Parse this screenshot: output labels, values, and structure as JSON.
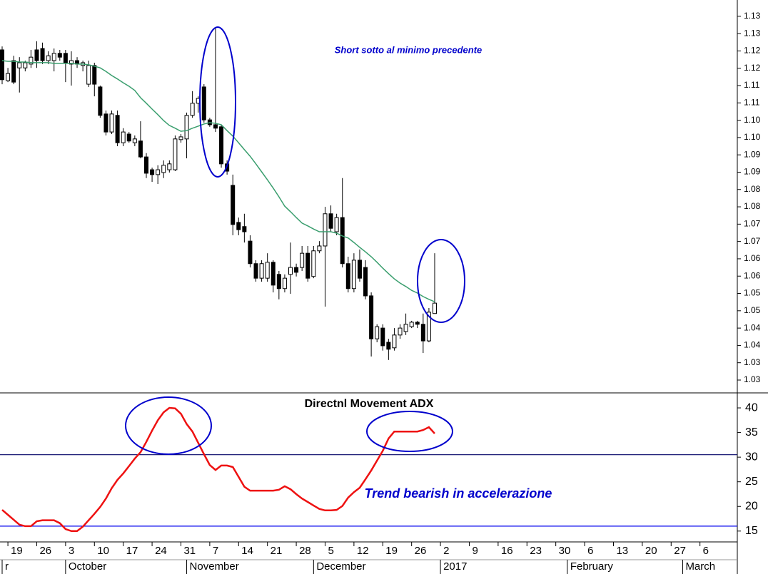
{
  "chart_data": {
    "type": "candlestick",
    "up_color": "#ffffff",
    "down_color": "#000000",
    "categories": [
      null,
      "19",
      null,
      null,
      null,
      null,
      "26",
      null,
      null,
      null,
      null,
      "3",
      null,
      null,
      null,
      null,
      "10",
      null,
      null,
      null,
      null,
      "17",
      null,
      null,
      null,
      null,
      "24",
      null,
      null,
      null,
      null,
      "31",
      null,
      null,
      null,
      null,
      "7",
      null,
      null,
      null,
      null,
      "14",
      null,
      null,
      null,
      null,
      "21",
      null,
      null,
      null,
      null,
      "28",
      null,
      null,
      null,
      null,
      "5",
      null,
      null,
      null,
      null,
      "12",
      null,
      null,
      null,
      null,
      "19",
      null,
      null,
      null,
      null,
      "26",
      null,
      null,
      null,
      null,
      "2",
      null,
      null,
      null,
      null,
      "9",
      null,
      null,
      null,
      null,
      "16",
      null,
      null,
      null,
      null,
      "23",
      null,
      null,
      null,
      null,
      "30",
      null,
      null,
      null,
      null,
      "6",
      null,
      null,
      null,
      null,
      "13",
      null,
      null,
      null,
      null,
      "20",
      null,
      null,
      null,
      null,
      "27",
      null,
      null,
      null,
      null,
      "6",
      null,
      null,
      null,
      null
    ],
    "x_groups": [
      "r",
      null,
      null,
      null,
      null,
      null,
      null,
      null,
      null,
      null,
      null,
      "October",
      null,
      null,
      null,
      null,
      null,
      null,
      null,
      null,
      null,
      null,
      null,
      null,
      null,
      null,
      null,
      null,
      null,
      null,
      null,
      null,
      "November",
      null,
      null,
      null,
      null,
      null,
      null,
      null,
      null,
      null,
      null,
      null,
      null,
      null,
      null,
      null,
      null,
      null,
      null,
      null,
      null,
      null,
      "December",
      null,
      null,
      null,
      null,
      null,
      null,
      null,
      null,
      null,
      null,
      null,
      null,
      null,
      null,
      null,
      null,
      null,
      null,
      null,
      null,
      null,
      "2017",
      null,
      null,
      null,
      null,
      null,
      null,
      null,
      null,
      null,
      null,
      null,
      null,
      null,
      null,
      null,
      null,
      null,
      null,
      null,
      null,
      null,
      "February",
      null,
      null,
      null,
      null,
      null,
      null,
      null,
      null,
      null,
      null,
      null,
      null,
      null,
      null,
      null,
      null,
      null,
      null,
      null,
      "March",
      null,
      null,
      null,
      null,
      null,
      null,
      null
    ],
    "open": [
      1.1228,
      1.1139,
      1.1197,
      1.1176,
      1.1176,
      1.1187,
      1.1228,
      1.1232,
      1.1197,
      1.1197,
      1.1218,
      1.1218,
      1.1187,
      1.1197,
      1.1183,
      1.1129,
      1.1183,
      1.1121,
      1.1043,
      1.0991,
      1.1039,
      1.096,
      1.0985,
      1.096,
      1.0965,
      1.0919,
      1.0882,
      1.0868,
      1.0874,
      1.0882,
      1.0882,
      1.0969,
      1.0971,
      1.1039,
      1.1074,
      1.1121,
      1.1026,
      1.1012,
      1.1006,
      1.0899,
      1.0837,
      1.073,
      1.0718,
      1.0676,
      1.0611,
      1.0569,
      1.0569,
      1.0615,
      1.058,
      1.0539,
      1.058,
      1.06,
      1.06,
      1.0641,
      1.0574,
      1.0648,
      1.0662,
      1.0755,
      1.0703,
      1.0744,
      1.0611,
      1.0539,
      1.0621,
      1.06,
      1.0518,
      1.0394,
      1.0425,
      1.0384,
      1.0368,
      1.0405,
      1.0415,
      1.0429,
      1.0442,
      1.0436,
      1.0388,
      1.0467,
      null,
      null,
      null,
      null,
      null,
      null,
      null,
      null,
      null,
      null,
      null,
      null,
      null,
      null,
      null,
      null,
      null,
      null,
      null,
      null,
      null,
      null,
      null,
      null,
      null,
      null,
      null,
      null,
      null,
      null,
      null,
      null,
      null,
      null,
      null,
      null,
      null,
      null,
      null,
      null,
      null,
      null,
      null,
      null,
      null,
      null,
      null,
      null,
      null,
      null
    ],
    "high": [
      1.1238,
      1.1176,
      1.1211,
      1.1207,
      1.1197,
      1.1228,
      1.1253,
      1.1249,
      1.1224,
      1.1232,
      1.1228,
      1.1228,
      1.1224,
      1.1207,
      1.1197,
      1.1197,
      1.1191,
      1.1125,
      1.1053,
      1.1053,
      1.1053,
      1.1002,
      1.0991,
      1.0981,
      1.1022,
      1.093,
      1.0888,
      1.0895,
      1.0909,
      1.0909,
      1.0981,
      1.0985,
      1.1047,
      1.1109,
      1.1094,
      1.1129,
      1.1032,
      1.129,
      1.1012,
      1.0909,
      1.0868,
      1.0744,
      1.0755,
      1.0693,
      1.0621,
      1.0621,
      1.0641,
      1.0621,
      1.059,
      1.058,
      1.0672,
      1.0611,
      1.0662,
      1.0662,
      1.0662,
      1.0676,
      1.0775,
      1.0779,
      1.0755,
      1.0858,
      1.0631,
      1.0641,
      1.0652,
      1.0621,
      1.0528,
      1.0436,
      1.0436,
      1.0394,
      1.0425,
      1.0436,
      1.0467,
      1.0446,
      1.0446,
      1.0467,
      1.0483,
      1.0641,
      null,
      null,
      null,
      null,
      null,
      null,
      null,
      null,
      null,
      null,
      null,
      null,
      null,
      null,
      null,
      null,
      null,
      null,
      null,
      null,
      null,
      null,
      null,
      null,
      null,
      null,
      null,
      null,
      null,
      null,
      null,
      null,
      null,
      null,
      null,
      null,
      null,
      null,
      null,
      null,
      null,
      null,
      null,
      null,
      null,
      null,
      null,
      null,
      null,
      null
    ],
    "low": [
      1.1129,
      1.1135,
      1.1129,
      1.1105,
      1.1166,
      1.1176,
      1.1176,
      1.1187,
      1.1187,
      1.1166,
      1.1197,
      1.1135,
      1.1125,
      1.1176,
      1.1166,
      1.1121,
      1.1094,
      1.1032,
      1.0981,
      1.0985,
      1.095,
      1.095,
      1.096,
      1.095,
      1.0915,
      1.0858,
      1.0847,
      1.0841,
      1.0858,
      1.0874,
      1.0878,
      1.096,
      1.0915,
      1.1032,
      1.1047,
      1.1018,
      1.1006,
      1.0991,
      1.0888,
      1.0868,
      1.0693,
      1.0693,
      1.0672,
      1.06,
      1.0559,
      1.0559,
      1.0559,
      1.0528,
      1.0508,
      1.0528,
      1.0524,
      1.0574,
      1.059,
      1.0559,
      1.0569,
      1.0641,
      1.0487,
      1.0703,
      1.0693,
      1.06,
      1.0528,
      1.0528,
      1.0559,
      1.0508,
      1.0343,
      1.0384,
      1.036,
      1.0333,
      1.036,
      1.0394,
      1.0405,
      1.0425,
      1.0425,
      1.0353,
      1.0384,
      1.0467,
      null,
      null,
      null,
      null,
      null,
      null,
      null,
      null,
      null,
      null,
      null,
      null,
      null,
      null,
      null,
      null,
      null,
      null,
      null,
      null,
      null,
      null,
      null,
      null,
      null,
      null,
      null,
      null,
      null,
      null,
      null,
      null,
      null,
      null,
      null,
      null,
      null,
      null,
      null,
      null,
      null,
      null,
      null,
      null,
      null,
      null,
      null,
      null,
      null,
      null
    ],
    "close": [
      1.1142,
      1.116,
      1.1135,
      1.1191,
      1.1191,
      1.1207,
      1.1197,
      1.1197,
      1.1211,
      1.1218,
      1.1207,
      1.1191,
      1.1197,
      1.1187,
      1.1191,
      1.1183,
      1.1129,
      1.1039,
      1.0991,
      1.1043,
      1.096,
      1.0991,
      1.0965,
      1.0971,
      1.0919,
      1.0872,
      1.0868,
      1.0882,
      1.0895,
      1.0899,
      1.0971,
      1.0977,
      1.1039,
      1.1074,
      1.1088,
      1.1026,
      1.1012,
      1.1002,
      1.0899,
      1.0878,
      1.0724,
      1.0709,
      1.0703,
      1.0611,
      1.0569,
      1.0611,
      1.0615,
      1.0549,
      1.0539,
      1.0569,
      1.06,
      1.0586,
      1.0641,
      1.0569,
      1.0648,
      1.0662,
      1.0755,
      1.0713,
      1.0744,
      1.0611,
      1.0539,
      1.0621,
      1.0569,
      1.0518,
      1.0394,
      1.0429,
      1.0374,
      1.0364,
      1.0405,
      1.0425,
      1.0436,
      1.0442,
      1.0436,
      1.0388,
      1.0471,
      1.0497,
      null,
      null,
      null,
      null,
      null,
      null,
      null,
      null,
      null,
      null,
      null,
      null,
      null,
      null,
      null,
      null,
      null,
      null,
      null,
      null,
      null,
      null,
      null,
      null,
      null,
      null,
      null,
      null,
      null,
      null,
      null,
      null,
      null,
      null,
      null,
      null,
      null,
      null,
      null,
      null,
      null,
      null,
      null,
      null,
      null,
      null,
      null,
      null,
      null,
      null
    ],
    "moving_average": {
      "color": "#3a9e6e",
      "values": [
        1.1197,
        1.1195,
        1.1195,
        1.1193,
        1.1193,
        1.1191,
        1.1191,
        1.1191,
        1.1191,
        1.1189,
        1.1189,
        1.1189,
        1.1189,
        1.1187,
        1.1187,
        1.1185,
        1.1181,
        1.1176,
        1.1166,
        1.1154,
        1.1144,
        1.1133,
        1.1123,
        1.1111,
        1.109,
        1.1074,
        1.1057,
        1.1041,
        1.1024,
        1.101,
        1.1002,
        1.0993,
        1.0995,
        1.1002,
        1.1008,
        1.1014,
        1.1018,
        1.1016,
        1.1012,
        1.0995,
        1.0979,
        1.096,
        1.094,
        1.0921,
        1.0899,
        1.0876,
        1.0853,
        1.0829,
        1.0804,
        1.0777,
        1.0761,
        1.0744,
        1.0728,
        1.072,
        1.0711,
        1.0703,
        1.0703,
        1.0703,
        1.0699,
        1.0691,
        1.0685,
        1.0672,
        1.0658,
        1.0645,
        1.0631,
        1.0615,
        1.0598,
        1.0582,
        1.0567,
        1.0555,
        1.0545,
        1.0534,
        1.0526,
        1.0516,
        1.0508,
        1.0501,
        null,
        null,
        null,
        null,
        null,
        null,
        null,
        null,
        null,
        null,
        null,
        null,
        null,
        null,
        null,
        null,
        null,
        null,
        null,
        null,
        null,
        null,
        null,
        null,
        null,
        null,
        null,
        null,
        null,
        null,
        null,
        null,
        null,
        null,
        null,
        null,
        null,
        null,
        null,
        null,
        null,
        null,
        null,
        null,
        null,
        null,
        null,
        null,
        null,
        null
      ]
    },
    "ylim": [
      1.024,
      1.1372
    ],
    "yticks": [
      {
        "value": 1.0275,
        "label": "1.03"
      },
      {
        "value": 1.0325,
        "label": "1.03"
      },
      {
        "value": 1.0375,
        "label": "1.04"
      },
      {
        "value": 1.0425,
        "label": "1.04"
      },
      {
        "value": 1.0475,
        "label": "1.05"
      },
      {
        "value": 1.0525,
        "label": "1.05"
      },
      {
        "value": 1.0575,
        "label": "1.06"
      },
      {
        "value": 1.0625,
        "label": "1.06"
      },
      {
        "value": 1.0675,
        "label": "1.07"
      },
      {
        "value": 1.0725,
        "label": "1.07"
      },
      {
        "value": 1.0775,
        "label": "1.08"
      },
      {
        "value": 1.0825,
        "label": "1.08"
      },
      {
        "value": 1.0875,
        "label": "1.09"
      },
      {
        "value": 1.0925,
        "label": "1.09"
      },
      {
        "value": 1.0975,
        "label": "1.10"
      },
      {
        "value": 1.1025,
        "label": "1.10"
      },
      {
        "value": 1.1075,
        "label": "1.11"
      },
      {
        "value": 1.1125,
        "label": "1.11"
      },
      {
        "value": 1.1175,
        "label": "1.12"
      },
      {
        "value": 1.1225,
        "label": "1.12"
      },
      {
        "value": 1.1275,
        "label": "1.13"
      },
      {
        "value": 1.1325,
        "label": "1.13"
      }
    ],
    "annotations": [
      "Short sotto al minimo precedente",
      "Trend bearish in accelerazione"
    ],
    "indicator": {
      "type": "line",
      "title": "Directnl Movement ADX",
      "color": "#ee1111",
      "values": [
        19.3,
        18.3,
        17.3,
        16.3,
        16.0,
        16.0,
        17.0,
        17.2,
        17.2,
        17.2,
        16.6,
        15.4,
        15.0,
        15.0,
        15.9,
        17.2,
        18.5,
        19.9,
        21.6,
        23.7,
        25.4,
        26.7,
        28.2,
        29.7,
        31.0,
        33.1,
        35.4,
        37.5,
        39.1,
        40.0,
        39.9,
        38.8,
        36.7,
        35.2,
        32.9,
        30.6,
        28.4,
        27.4,
        28.3,
        28.3,
        28.0,
        26.0,
        24.0,
        23.2,
        23.2,
        23.2,
        23.2,
        23.2,
        23.4,
        24.1,
        23.5,
        22.5,
        21.6,
        20.9,
        20.2,
        19.5,
        19.2,
        19.2,
        19.3,
        20.1,
        21.8,
        22.9,
        23.8,
        25.5,
        27.3,
        29.3,
        31.3,
        33.8,
        35.2,
        35.2,
        35.2,
        35.2,
        35.2,
        35.5,
        36.1,
        34.8,
        null,
        null,
        null,
        null,
        null,
        null,
        null,
        null,
        null,
        null,
        null,
        null,
        null,
        null,
        null,
        null,
        null,
        null,
        null,
        null,
        null,
        null,
        null,
        null,
        null,
        null,
        null,
        null,
        null,
        null,
        null,
        null,
        null,
        null,
        null,
        null,
        null,
        null,
        null,
        null,
        null,
        null,
        null,
        null,
        null,
        null,
        null,
        null,
        null,
        null
      ],
      "ylim": [
        12.8,
        42.9
      ],
      "yticks": [
        15,
        20,
        25,
        30,
        35,
        40
      ],
      "reference_lines": [
        {
          "value": 30.5,
          "color": "#000066"
        },
        {
          "value": 16,
          "color": "#0000ee"
        }
      ]
    }
  }
}
